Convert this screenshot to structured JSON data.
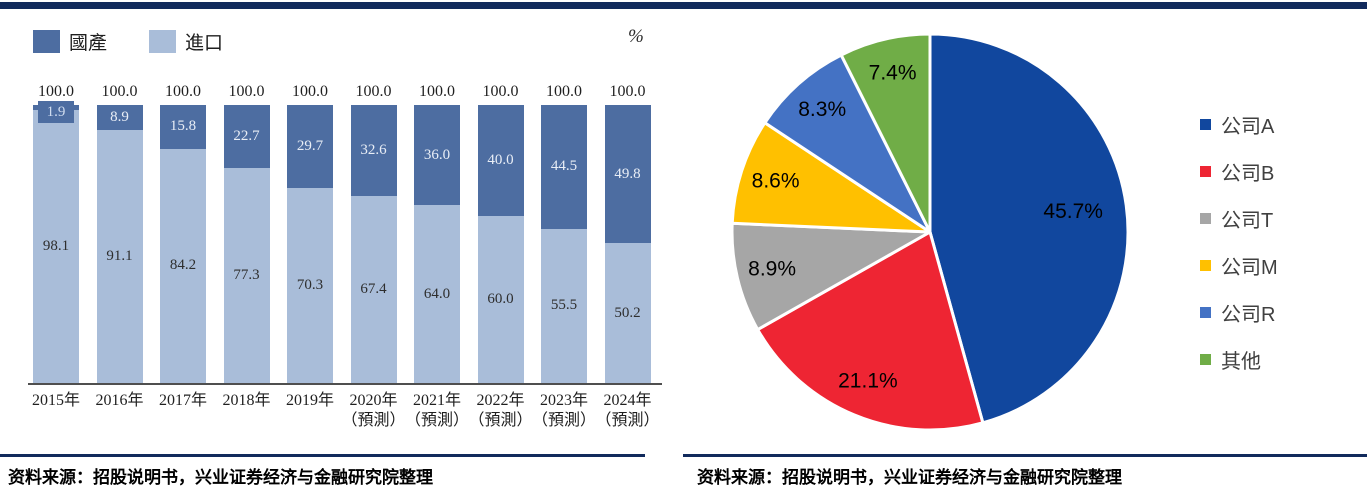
{
  "page": {
    "source_left": "资料来源：招股说明书，兴业证券经济与金融研究院整理",
    "source_right": "资料来源：招股说明书，兴业证券经济与金融研究院整理"
  },
  "colors": {
    "rule_navy": "#112a5c",
    "bar_domestic": "#4d6da1",
    "bar_import": "#a9bdd9",
    "axis_gray": "#4f4f4f"
  },
  "chart_data": [
    {
      "type": "bar",
      "stacked": true,
      "unit_label": "%",
      "ylim": [
        0,
        100
      ],
      "grid": false,
      "legend_position": "top-left",
      "categories": [
        {
          "year": "2015年",
          "note": ""
        },
        {
          "year": "2016年",
          "note": ""
        },
        {
          "year": "2017年",
          "note": ""
        },
        {
          "year": "2018年",
          "note": ""
        },
        {
          "year": "2019年",
          "note": ""
        },
        {
          "year": "2020年",
          "note": "（預測）"
        },
        {
          "year": "2021年",
          "note": "（預測）"
        },
        {
          "year": "2022年",
          "note": "（預測）"
        },
        {
          "year": "2023年",
          "note": "（預測）"
        },
        {
          "year": "2024年",
          "note": "（預測）"
        }
      ],
      "series": [
        {
          "name": "國產",
          "color": "#4d6da1",
          "values": [
            1.9,
            8.9,
            15.8,
            22.7,
            29.7,
            32.6,
            36.0,
            40.0,
            44.5,
            49.8
          ],
          "labels": [
            "1.9",
            "8.9",
            "15.8",
            "22.7",
            "29.7",
            "32.6",
            "36.0",
            "40.0",
            "44.5",
            "49.8"
          ]
        },
        {
          "name": "進口",
          "color": "#a9bdd9",
          "values": [
            98.1,
            91.1,
            84.2,
            77.3,
            70.3,
            67.4,
            64.0,
            60.0,
            55.5,
            50.2
          ],
          "labels": [
            "98.1",
            "91.1",
            "84.2",
            "77.3",
            "70.3",
            "67.4",
            "64.0",
            "60.0",
            "55.5",
            "50.2"
          ]
        }
      ],
      "totals_labels": [
        "100.0",
        "100.0",
        "100.0",
        "100.0",
        "100.0",
        "100.0",
        "100.0",
        "100.0",
        "100.0",
        "100.0"
      ]
    },
    {
      "type": "pie",
      "start_angle_deg": 0,
      "direction": "clockwise",
      "legend_position": "right",
      "labels": [
        "公司A",
        "公司B",
        "公司T",
        "公司M",
        "公司R",
        "其他"
      ],
      "values": [
        45.7,
        21.1,
        8.9,
        8.6,
        8.3,
        7.4
      ],
      "value_labels": [
        "45.7%",
        "21.1%",
        "8.9%",
        "8.6%",
        "8.3%",
        "7.4%"
      ],
      "colors": [
        "#11479e",
        "#ee2533",
        "#a6a6a6",
        "#ffc000",
        "#4472c4",
        "#70ad47"
      ]
    }
  ]
}
